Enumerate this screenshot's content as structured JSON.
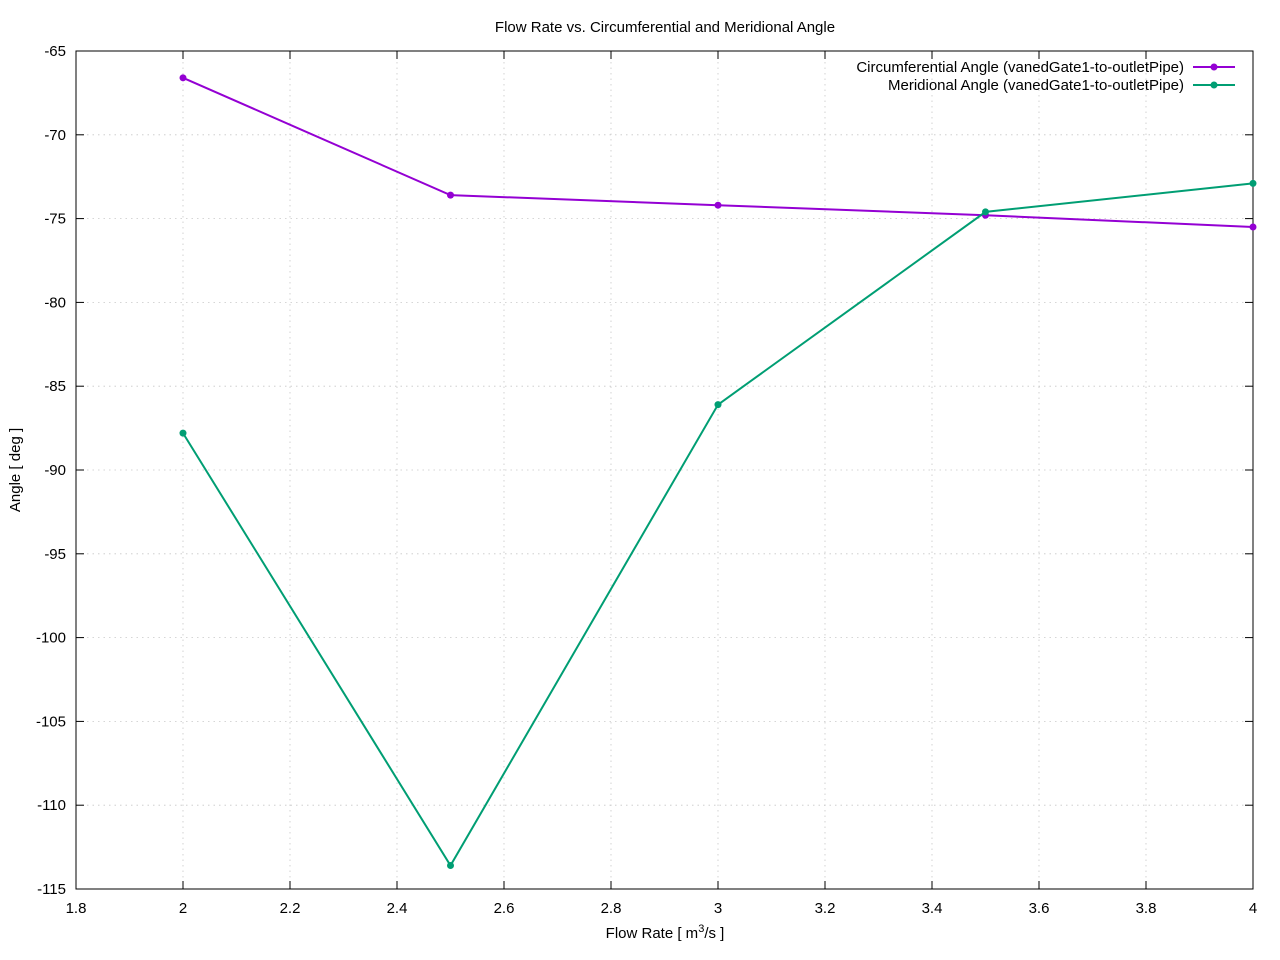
{
  "chart_data": {
    "type": "line",
    "title": "Flow Rate vs. Circumferential and Meridional Angle",
    "xlabel_main": "Flow Rate [ m",
    "xlabel_sup": "3",
    "xlabel_tail": "/s ]",
    "ylabel": "Angle [ deg ]",
    "xlim": [
      1.8,
      4
    ],
    "ylim": [
      -115,
      -65
    ],
    "xticks": [
      "1.8",
      "2",
      "2.2",
      "2.4",
      "2.6",
      "2.8",
      "3",
      "3.2",
      "3.4",
      "3.6",
      "3.8",
      "4"
    ],
    "yticks": [
      "-65",
      "-70",
      "-75",
      "-80",
      "-85",
      "-90",
      "-95",
      "-100",
      "-105",
      "-110",
      "-115"
    ],
    "grid": true,
    "legend_position": "top-right",
    "x": [
      2,
      2.5,
      3,
      3.5,
      4
    ],
    "series": [
      {
        "name": "Circumferential Angle (vanedGate1-to-outletPipe)",
        "color": "#9400d3",
        "values": [
          -66.6,
          -73.6,
          -74.2,
          -74.8,
          -75.5
        ]
      },
      {
        "name": "Meridional Angle (vanedGate1-to-outletPipe)",
        "color": "#009e73",
        "values": [
          -87.8,
          -113.6,
          -86.1,
          -74.6,
          -72.9
        ]
      }
    ]
  }
}
